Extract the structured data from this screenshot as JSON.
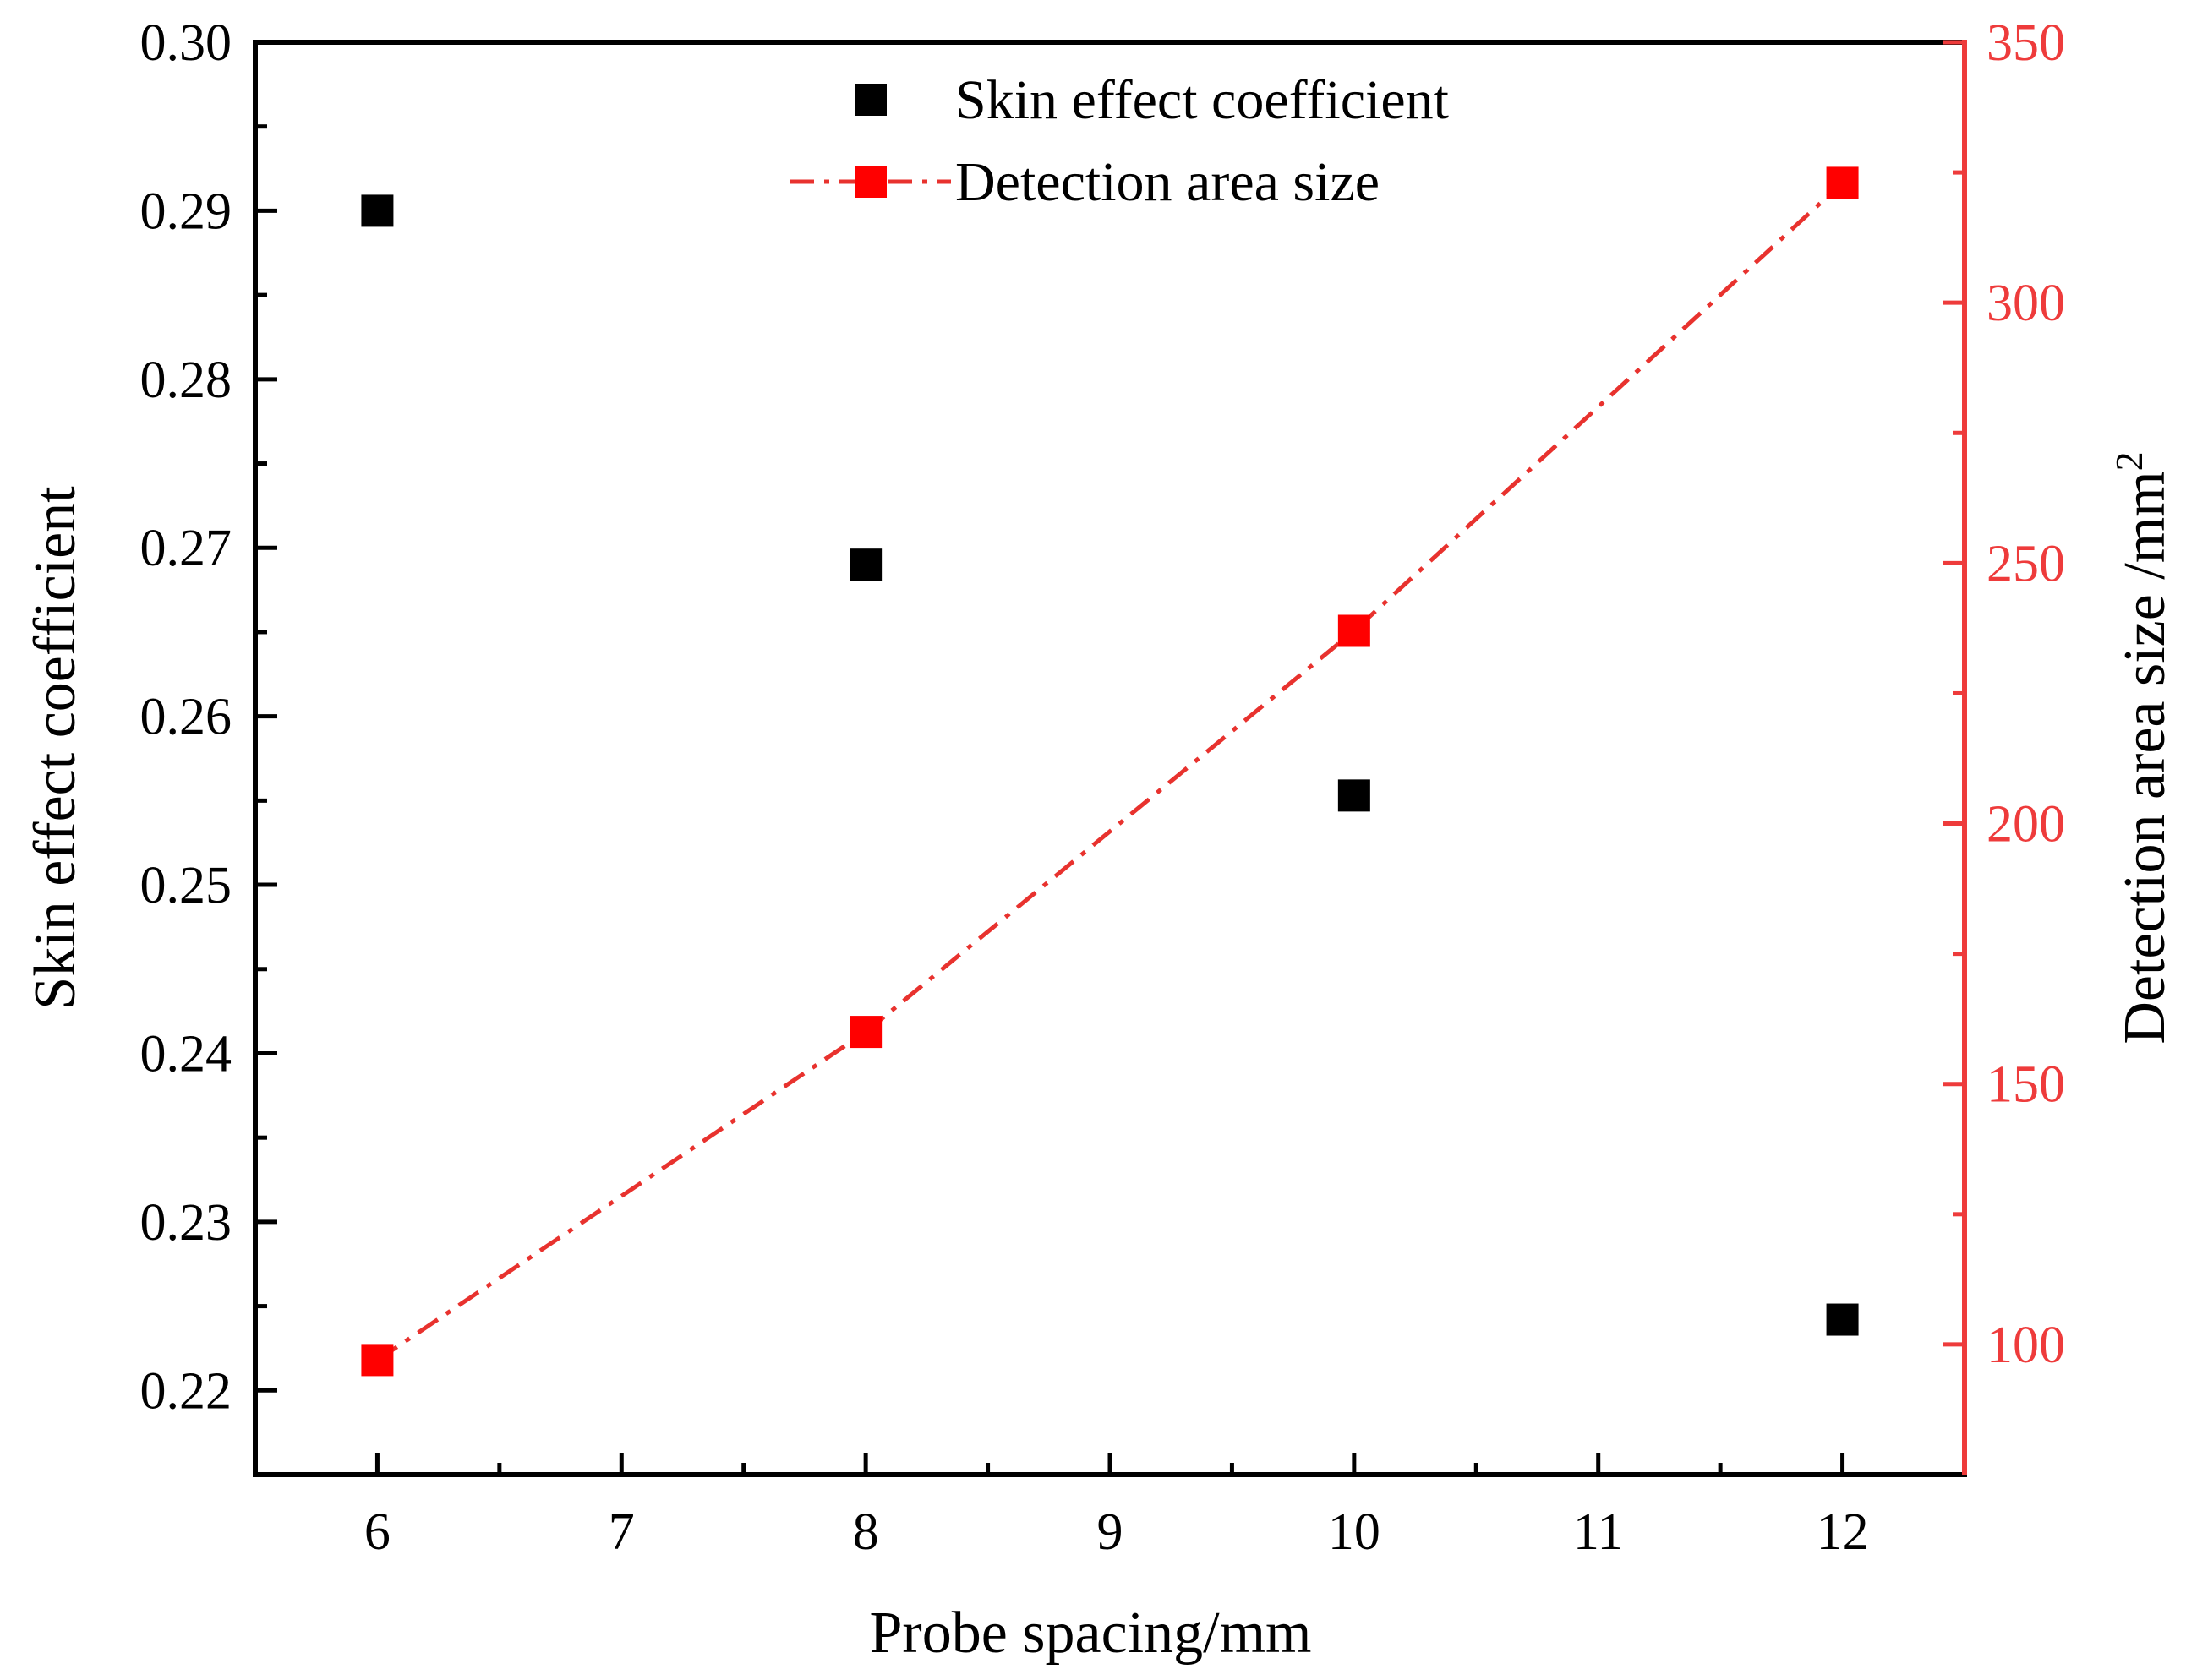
{
  "chart_data": {
    "type": "scatter+line",
    "title": "",
    "xlabel": "Probe spacing/mm",
    "ylabel_left": "Skin effect coefficient",
    "ylabel_right_base": "Detection area size /mm",
    "ylabel_right_sup": "2",
    "xlim": [
      5.5,
      12.5
    ],
    "ylim_left": [
      0.215,
      0.3
    ],
    "ylim_right": [
      75,
      350
    ],
    "x_ticks": [
      "6",
      "7",
      "8",
      "9",
      "10",
      "11",
      "12"
    ],
    "y_left_ticks": [
      "0.22",
      "0.23",
      "0.24",
      "0.25",
      "0.26",
      "0.27",
      "0.28",
      "0.29",
      "0.30"
    ],
    "y_right_ticks": [
      "100",
      "150",
      "200",
      "250",
      "300",
      "350"
    ],
    "grid": false,
    "legend_position": "top-center",
    "series": [
      {
        "name": "Skin effect coefficient",
        "axis": "left",
        "style": "markers",
        "color": "#000000",
        "x": [
          6,
          8,
          10,
          12
        ],
        "values": [
          0.29,
          0.269,
          0.2553,
          0.2242
        ]
      },
      {
        "name": "Detection area size",
        "axis": "right",
        "style": "dash-dot line with markers",
        "color": "#ff0000",
        "line_color": "#e8322e",
        "x": [
          6,
          8,
          10,
          12
        ],
        "values": [
          97,
          160,
          237,
          323
        ]
      }
    ],
    "right_axis_color": "#ee3b3b"
  }
}
